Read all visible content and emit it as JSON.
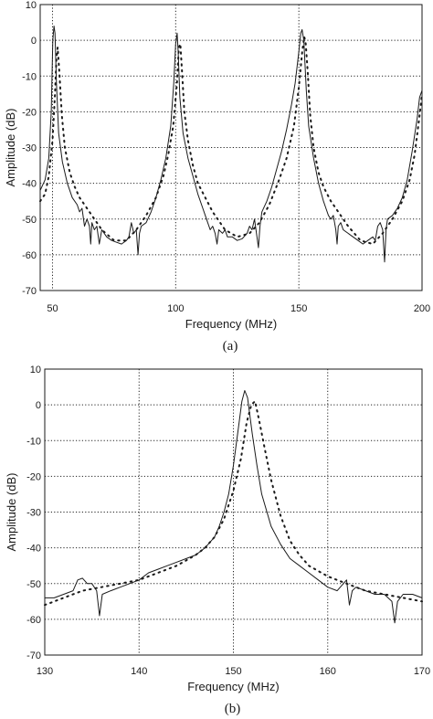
{
  "chart_data": [
    {
      "type": "line",
      "caption": "(a)",
      "xlabel": "Frequency (MHz)",
      "ylabel": "Amplitude (dB)",
      "xlim": [
        45,
        200
      ],
      "ylim": [
        -70,
        10
      ],
      "xticks": [
        50,
        100,
        150,
        200
      ],
      "xtick_labels": [
        "50",
        "100",
        "150",
        "200"
      ],
      "yticks": [
        10,
        0,
        -10,
        -20,
        -30,
        -40,
        -50,
        -60,
        -70
      ],
      "ytick_labels": [
        "10",
        "0",
        "-10",
        "-20",
        "-30",
        "-40",
        "-50",
        "-60",
        "-70"
      ],
      "grid": "dotted",
      "series": [
        {
          "style": "solid",
          "points": [
            [
              45,
              -42
            ],
            [
              47,
              -39
            ],
            [
              48.5,
              -33
            ],
            [
              49.5,
              -20
            ],
            [
              50.1,
              0
            ],
            [
              50.6,
              4
            ],
            [
              51,
              2
            ],
            [
              51.6,
              -12
            ],
            [
              52.5,
              -26
            ],
            [
              54,
              -34
            ],
            [
              56,
              -40
            ],
            [
              58,
              -44
            ],
            [
              60,
              -46
            ],
            [
              61,
              -48
            ],
            [
              62,
              -47
            ],
            [
              63,
              -52
            ],
            [
              64,
              -50
            ],
            [
              65,
              -52
            ],
            [
              65.5,
              -57
            ],
            [
              66,
              -51
            ],
            [
              67,
              -53
            ],
            [
              68,
              -52
            ],
            [
              69,
              -57
            ],
            [
              70,
              -53
            ],
            [
              72,
              -55
            ],
            [
              74,
              -56
            ],
            [
              76,
              -56.5
            ],
            [
              78,
              -57
            ],
            [
              80,
              -56
            ],
            [
              81,
              -55
            ],
            [
              82,
              -51
            ],
            [
              83,
              -54
            ],
            [
              84,
              -53
            ],
            [
              84.7,
              -60
            ],
            [
              85.3,
              -54
            ],
            [
              86,
              -52
            ],
            [
              88,
              -51
            ],
            [
              90,
              -48
            ],
            [
              92,
              -44
            ],
            [
              94,
              -39
            ],
            [
              96,
              -33
            ],
            [
              98,
              -24
            ],
            [
              99.2,
              -12
            ],
            [
              100,
              -1
            ],
            [
              100.6,
              2
            ],
            [
              101,
              -3
            ],
            [
              101.7,
              -16
            ],
            [
              103,
              -26
            ],
            [
              105,
              -33
            ],
            [
              107,
              -38
            ],
            [
              109,
              -43
            ],
            [
              111,
              -47
            ],
            [
              112,
              -49
            ],
            [
              113,
              -51
            ],
            [
              114,
              -53
            ],
            [
              115,
              -52
            ],
            [
              116,
              -54
            ],
            [
              116.8,
              -57
            ],
            [
              117.5,
              -53
            ],
            [
              119,
              -54
            ],
            [
              120,
              -53
            ],
            [
              121,
              -55
            ],
            [
              123,
              -55
            ],
            [
              125,
              -56
            ],
            [
              127,
              -55.5
            ],
            [
              129,
              -54
            ],
            [
              130,
              -52
            ],
            [
              131,
              -53
            ],
            [
              132,
              -50
            ],
            [
              133,
              -55
            ],
            [
              133.6,
              -58
            ],
            [
              134.2,
              -52
            ],
            [
              135,
              -48
            ],
            [
              137,
              -45
            ],
            [
              139,
              -41
            ],
            [
              141,
              -36
            ],
            [
              143,
              -31
            ],
            [
              145,
              -25
            ],
            [
              147,
              -18
            ],
            [
              148.5,
              -12
            ],
            [
              150,
              -3
            ],
            [
              150.8,
              2
            ],
            [
              151.3,
              3
            ],
            [
              152,
              0
            ],
            [
              153,
              -14
            ],
            [
              154,
              -24
            ],
            [
              156,
              -33
            ],
            [
              158,
              -40
            ],
            [
              160,
              -45
            ],
            [
              161,
              -47
            ],
            [
              162,
              -49
            ],
            [
              163,
              -50
            ],
            [
              164,
              -49
            ],
            [
              165,
              -53
            ],
            [
              165.5,
              -57
            ],
            [
              166,
              -52
            ],
            [
              167,
              -51
            ],
            [
              168,
              -53
            ],
            [
              170,
              -54
            ],
            [
              172,
              -55
            ],
            [
              174,
              -56
            ],
            [
              176,
              -57
            ],
            [
              178,
              -56
            ],
            [
              180,
              -55
            ],
            [
              181,
              -56
            ],
            [
              182,
              -52
            ],
            [
              183,
              -51
            ],
            [
              184,
              -53
            ],
            [
              184.8,
              -62
            ],
            [
              185.4,
              -53
            ],
            [
              186,
              -50
            ],
            [
              188,
              -49
            ],
            [
              190,
              -47
            ],
            [
              192,
              -44
            ],
            [
              194,
              -39
            ],
            [
              196,
              -31
            ],
            [
              198,
              -22
            ],
            [
              199,
              -16
            ],
            [
              200,
              -14
            ]
          ]
        },
        {
          "style": "dotted",
          "points": [
            [
              45,
              -45
            ],
            [
              47,
              -43
            ],
            [
              48.5,
              -38
            ],
            [
              50,
              -28
            ],
            [
              51,
              -15
            ],
            [
              51.6,
              -5
            ],
            [
              52.1,
              -2
            ],
            [
              52.8,
              -9
            ],
            [
              53.8,
              -21
            ],
            [
              55,
              -30
            ],
            [
              57,
              -37
            ],
            [
              59,
              -41
            ],
            [
              61,
              -44
            ],
            [
              63,
              -46
            ],
            [
              66,
              -49
            ],
            [
              70,
              -53
            ],
            [
              75,
              -56
            ],
            [
              80,
              -56
            ],
            [
              84,
              -53
            ],
            [
              88,
              -49
            ],
            [
              92,
              -44
            ],
            [
              95,
              -38
            ],
            [
              97,
              -32
            ],
            [
              99,
              -24
            ],
            [
              100.5,
              -12
            ],
            [
              101.3,
              -2
            ],
            [
              101.9,
              -1
            ],
            [
              102.5,
              -8
            ],
            [
              103.5,
              -20
            ],
            [
              105,
              -28
            ],
            [
              107,
              -35
            ],
            [
              109,
              -40
            ],
            [
              112,
              -44
            ],
            [
              115,
              -48
            ],
            [
              120,
              -53
            ],
            [
              125,
              -55
            ],
            [
              130,
              -54
            ],
            [
              134,
              -51
            ],
            [
              138,
              -46
            ],
            [
              142,
              -39
            ],
            [
              145,
              -33
            ],
            [
              148,
              -24
            ],
            [
              150,
              -13
            ],
            [
              151.4,
              -3
            ],
            [
              152.2,
              1
            ],
            [
              152.8,
              -1
            ],
            [
              153.6,
              -9
            ],
            [
              154.6,
              -21
            ],
            [
              156,
              -30
            ],
            [
              158,
              -37
            ],
            [
              160,
              -41
            ],
            [
              163,
              -45
            ],
            [
              166,
              -48
            ],
            [
              170,
              -52
            ],
            [
              175,
              -56
            ],
            [
              180,
              -57
            ],
            [
              184,
              -54
            ],
            [
              188,
              -50
            ],
            [
              192,
              -45
            ],
            [
              195,
              -39
            ],
            [
              197,
              -32
            ],
            [
              199,
              -21
            ],
            [
              200,
              -15
            ]
          ]
        }
      ]
    },
    {
      "type": "line",
      "caption": "(b)",
      "xlabel": "Frequency (MHz)",
      "ylabel": "Amplitude (dB)",
      "xlim": [
        130,
        170
      ],
      "ylim": [
        -70,
        10
      ],
      "xticks": [
        130,
        140,
        150,
        160,
        170
      ],
      "xtick_labels": [
        "130",
        "140",
        "150",
        "160",
        "170"
      ],
      "yticks": [
        10,
        0,
        -10,
        -20,
        -30,
        -40,
        -50,
        -60,
        -70
      ],
      "ytick_labels": [
        "10",
        "0",
        "-10",
        "-20",
        "-30",
        "-40",
        "-50",
        "-60",
        "-70"
      ],
      "grid": "dotted",
      "series": [
        {
          "style": "solid",
          "points": [
            [
              130,
              -54
            ],
            [
              131,
              -54
            ],
            [
              132,
              -53
            ],
            [
              133,
              -52
            ],
            [
              133.5,
              -49
            ],
            [
              134,
              -48.5
            ],
            [
              134.5,
              -50
            ],
            [
              135,
              -50
            ],
            [
              135.5,
              -52
            ],
            [
              135.8,
              -59
            ],
            [
              136.1,
              -53
            ],
            [
              137,
              -52
            ],
            [
              138,
              -51
            ],
            [
              139,
              -50
            ],
            [
              140,
              -49
            ],
            [
              141,
              -47
            ],
            [
              142,
              -46
            ],
            [
              143,
              -45
            ],
            [
              144,
              -44
            ],
            [
              145,
              -43
            ],
            [
              146,
              -42
            ],
            [
              147,
              -40
            ],
            [
              148,
              -37
            ],
            [
              148.5,
              -34
            ],
            [
              149,
              -30
            ],
            [
              149.5,
              -25
            ],
            [
              150,
              -17
            ],
            [
              150.5,
              -7
            ],
            [
              150.9,
              1
            ],
            [
              151.2,
              4
            ],
            [
              151.5,
              2
            ],
            [
              152,
              -8
            ],
            [
              152.5,
              -17
            ],
            [
              153,
              -25
            ],
            [
              154,
              -34
            ],
            [
              155,
              -39
            ],
            [
              156,
              -43
            ],
            [
              157,
              -45
            ],
            [
              158,
              -47
            ],
            [
              159,
              -49
            ],
            [
              160,
              -51
            ],
            [
              161,
              -52
            ],
            [
              162,
              -49
            ],
            [
              162.3,
              -56
            ],
            [
              162.6,
              -52
            ],
            [
              163,
              -51
            ],
            [
              164,
              -52
            ],
            [
              165,
              -53
            ],
            [
              166,
              -53
            ],
            [
              166.8,
              -55
            ],
            [
              167.1,
              -61
            ],
            [
              167.4,
              -55
            ],
            [
              168,
              -53
            ],
            [
              169,
              -53
            ],
            [
              170,
              -54
            ]
          ]
        },
        {
          "style": "dotted",
          "points": [
            [
              130,
              -56
            ],
            [
              132,
              -54
            ],
            [
              134,
              -52
            ],
            [
              136,
              -51
            ],
            [
              138,
              -50
            ],
            [
              140,
              -49
            ],
            [
              142,
              -47
            ],
            [
              144,
              -45
            ],
            [
              146,
              -42
            ],
            [
              147,
              -40
            ],
            [
              148,
              -37
            ],
            [
              149,
              -32
            ],
            [
              150,
              -24
            ],
            [
              150.8,
              -15
            ],
            [
              151.4,
              -5
            ],
            [
              151.9,
              0
            ],
            [
              152.3,
              1
            ],
            [
              152.7,
              -4
            ],
            [
              153.3,
              -12
            ],
            [
              154,
              -21
            ],
            [
              155,
              -31
            ],
            [
              156,
              -38
            ],
            [
              157,
              -42
            ],
            [
              158,
              -45
            ],
            [
              160,
              -48
            ],
            [
              162,
              -50
            ],
            [
              164,
              -52
            ],
            [
              166,
              -53
            ],
            [
              168,
              -54
            ],
            [
              170,
              -55
            ]
          ]
        }
      ]
    }
  ]
}
